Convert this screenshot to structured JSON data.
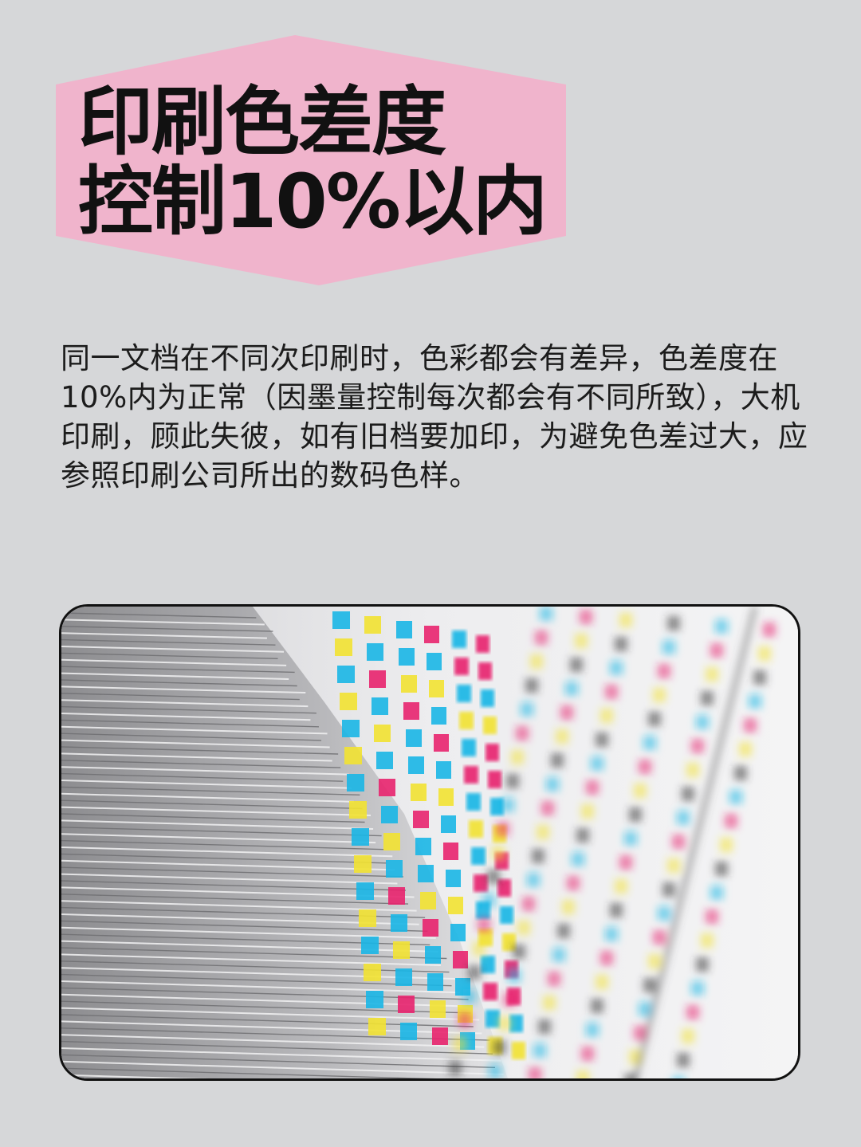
{
  "title": {
    "line1": "印刷色差度",
    "line2": "控制10%以内"
  },
  "body": {
    "paragraph": "同一文档在不同次印刷时，色彩都会有差异，色差度在10%内为正常（因墨量控制每次都会有不同所致），大机印刷，顾此失彼，如有旧档要加印，为避免色差过大，应参照印刷公司所出的数码色样。"
  },
  "photo": {
    "subject": "stacked-printed-sheets-with-cmyk-color-bars-icon"
  },
  "colors": {
    "background": "#d6d7d9",
    "banner": "#f0b4cc",
    "title_text": "#111111",
    "body_text": "#1c1c1c",
    "frame_border": "#111111",
    "cyan": "#19b6e6",
    "magenta": "#e8236e",
    "yellow": "#f2e232"
  }
}
